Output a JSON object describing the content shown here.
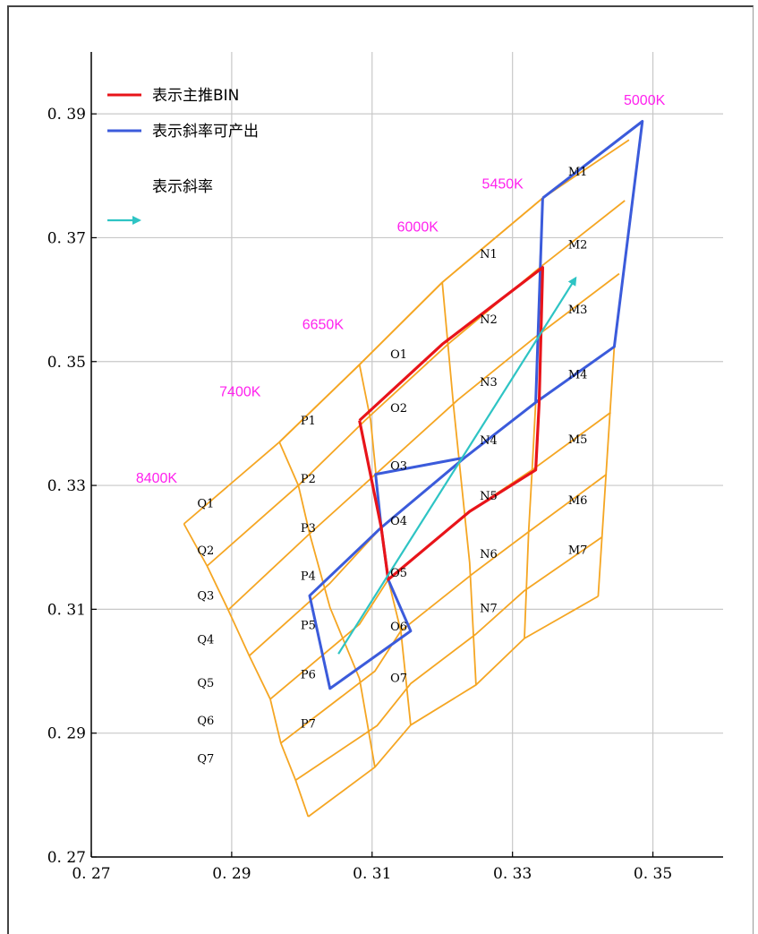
{
  "chart_data": {
    "type": "scatter",
    "title": "",
    "xlabel": "",
    "ylabel": "",
    "xlim": [
      0.27,
      0.36
    ],
    "ylim": [
      0.27,
      0.4
    ],
    "x_ticks": [
      "0. 27",
      "0. 29",
      "0. 31",
      "0. 33",
      "0. 35"
    ],
    "y_ticks": [
      "0. 27",
      "0. 29",
      "0. 31",
      "0. 33",
      "0. 35",
      "0. 37",
      "0. 39"
    ],
    "x_tick_values": [
      0.27,
      0.29,
      0.31,
      0.33,
      0.35
    ],
    "y_tick_values": [
      0.27,
      0.29,
      0.31,
      0.33,
      0.35,
      0.37,
      0.39
    ],
    "grid": true,
    "colors": {
      "bin_grid": "#f5a623",
      "main_bin": "#e8141a",
      "slope_region": "#3b5bdb",
      "slope_arrow": "#2ec4c4",
      "cct_label": "#ff22ee"
    },
    "legend": {
      "position": "top-left",
      "items": [
        {
          "label": "表示主推BIN",
          "color": "#e8141a",
          "kind": "line"
        },
        {
          "label": "表示斜率可产出",
          "color": "#3b5bdb",
          "kind": "line"
        },
        {
          "label": "表示斜率",
          "color": "#2ec4c4",
          "kind": "arrow"
        }
      ]
    },
    "cct_lines": [
      {
        "label": "5000K",
        "points": [
          [
            0.3485,
            0.3888
          ],
          [
            0.3445,
            0.3524
          ],
          [
            0.3422,
            0.3121
          ]
        ],
        "label_at": [
          0.3488,
          0.3923
        ]
      },
      {
        "label": "5450K",
        "points": [
          [
            0.3343,
            0.3764
          ],
          [
            0.3339,
            0.3652
          ],
          [
            0.3333,
            0.3434
          ],
          [
            0.3328,
            0.3325
          ],
          [
            0.3323,
            0.3225
          ],
          [
            0.3317,
            0.3053
          ]
        ],
        "label_at": [
          0.3286,
          0.3788
        ]
      },
      {
        "label": "6000K",
        "points": [
          [
            0.32,
            0.3628
          ],
          [
            0.3216,
            0.3428
          ],
          [
            0.3239,
            0.3175
          ],
          [
            0.3248,
            0.2978
          ]
        ],
        "label_at": [
          0.3165,
          0.3719
        ]
      },
      {
        "label": "6650K",
        "points": [
          [
            0.3082,
            0.3495
          ],
          [
            0.3098,
            0.3405
          ],
          [
            0.3113,
            0.3232
          ],
          [
            0.3123,
            0.3148
          ],
          [
            0.3141,
            0.3065
          ],
          [
            0.3155,
            0.2913
          ]
        ],
        "label_at": [
          0.303,
          0.3561
        ]
      },
      {
        "label": "7400K",
        "points": [
          [
            0.2968,
            0.337
          ],
          [
            0.2995,
            0.33
          ],
          [
            0.3011,
            0.3222
          ],
          [
            0.304,
            0.3103
          ],
          [
            0.3082,
            0.2988
          ],
          [
            0.3104,
            0.2845
          ]
        ],
        "label_at": [
          0.2912,
          0.3453
        ]
      },
      {
        "label": "8400K",
        "points": [
          [
            0.2832,
            0.3238
          ],
          [
            0.2865,
            0.317
          ],
          [
            0.2895,
            0.3099
          ],
          [
            0.2925,
            0.3025
          ],
          [
            0.2955,
            0.2955
          ],
          [
            0.297,
            0.2884
          ],
          [
            0.2991,
            0.2824
          ],
          [
            0.3009,
            0.2765
          ]
        ],
        "label_at": [
          0.2793,
          0.3313
        ]
      }
    ],
    "bin_rows": [
      {
        "name": "row-0",
        "points": [
          [
            0.2968,
            0.337
          ],
          [
            0.3082,
            0.3495
          ],
          [
            0.32,
            0.3628
          ],
          [
            0.3343,
            0.3764
          ],
          [
            0.3466,
            0.3858
          ]
        ]
      },
      {
        "name": "row-1",
        "points": [
          [
            0.2832,
            0.3238
          ],
          [
            0.2968,
            0.337
          ],
          [
            0.3082,
            0.3495
          ],
          [
            0.32,
            0.3628
          ],
          [
            0.3343,
            0.3764
          ]
        ]
      },
      {
        "name": "row-2",
        "points": [
          [
            0.2865,
            0.317
          ],
          [
            0.2995,
            0.33
          ],
          [
            0.309,
            0.3405
          ],
          [
            0.3208,
            0.3528
          ],
          [
            0.3339,
            0.3652
          ],
          [
            0.346,
            0.376
          ]
        ]
      },
      {
        "name": "row-3",
        "points": [
          [
            0.2895,
            0.3099
          ],
          [
            0.3011,
            0.3222
          ],
          [
            0.3105,
            0.3318
          ],
          [
            0.3222,
            0.3438
          ],
          [
            0.3333,
            0.354
          ],
          [
            0.3452,
            0.3642
          ]
        ]
      },
      {
        "name": "row-4",
        "points": [
          [
            0.2925,
            0.3025
          ],
          [
            0.304,
            0.3142
          ],
          [
            0.3113,
            0.3232
          ],
          [
            0.3232,
            0.3345
          ],
          [
            0.3333,
            0.3434
          ],
          [
            0.3445,
            0.3524
          ]
        ]
      },
      {
        "name": "row-5",
        "points": [
          [
            0.2955,
            0.2955
          ],
          [
            0.3082,
            0.3076
          ],
          [
            0.3123,
            0.3148
          ],
          [
            0.3239,
            0.3258
          ],
          [
            0.3328,
            0.3325
          ],
          [
            0.344,
            0.3418
          ]
        ]
      },
      {
        "name": "row-6",
        "points": [
          [
            0.297,
            0.2884
          ],
          [
            0.3104,
            0.3
          ],
          [
            0.3141,
            0.3065
          ],
          [
            0.3244,
            0.3158
          ],
          [
            0.3323,
            0.3225
          ],
          [
            0.3434,
            0.3318
          ]
        ]
      },
      {
        "name": "row-7",
        "points": [
          [
            0.2991,
            0.2824
          ],
          [
            0.3107,
            0.2912
          ],
          [
            0.3155,
            0.298
          ],
          [
            0.3248,
            0.306
          ],
          [
            0.3317,
            0.313
          ],
          [
            0.3428,
            0.3217
          ]
        ]
      },
      {
        "name": "row-8",
        "points": [
          [
            0.3009,
            0.2765
          ],
          [
            0.3104,
            0.2845
          ],
          [
            0.3155,
            0.2913
          ],
          [
            0.3248,
            0.2978
          ],
          [
            0.3317,
            0.3053
          ],
          [
            0.3422,
            0.3121
          ]
        ]
      }
    ],
    "bin_labels": [
      {
        "label": "M1",
        "at": [
          0.3393,
          0.3808
        ]
      },
      {
        "label": "M2",
        "at": [
          0.3393,
          0.369
        ]
      },
      {
        "label": "M3",
        "at": [
          0.3393,
          0.3585
        ]
      },
      {
        "label": "M4",
        "at": [
          0.3393,
          0.348
        ]
      },
      {
        "label": "M5",
        "at": [
          0.3393,
          0.3375
        ]
      },
      {
        "label": "M6",
        "at": [
          0.3393,
          0.3277
        ]
      },
      {
        "label": "M7",
        "at": [
          0.3393,
          0.3197
        ]
      },
      {
        "label": "N1",
        "at": [
          0.3266,
          0.3675
        ]
      },
      {
        "label": "N2",
        "at": [
          0.3266,
          0.3569
        ]
      },
      {
        "label": "N3",
        "at": [
          0.3266,
          0.3468
        ]
      },
      {
        "label": "N4",
        "at": [
          0.3266,
          0.3374
        ]
      },
      {
        "label": "N5",
        "at": [
          0.3266,
          0.3284
        ]
      },
      {
        "label": "N6",
        "at": [
          0.3266,
          0.319
        ]
      },
      {
        "label": "N7",
        "at": [
          0.3266,
          0.3103
        ]
      },
      {
        "label": "O1",
        "at": [
          0.3138,
          0.3513
        ]
      },
      {
        "label": "O2",
        "at": [
          0.3138,
          0.3426
        ]
      },
      {
        "label": "O3",
        "at": [
          0.3138,
          0.3333
        ]
      },
      {
        "label": "O4",
        "at": [
          0.3138,
          0.3244
        ]
      },
      {
        "label": "O5",
        "at": [
          0.3138,
          0.316
        ]
      },
      {
        "label": "O6",
        "at": [
          0.3138,
          0.3073
        ]
      },
      {
        "label": "O7",
        "at": [
          0.3138,
          0.299
        ]
      },
      {
        "label": "P1",
        "at": [
          0.3009,
          0.3406
        ]
      },
      {
        "label": "P2",
        "at": [
          0.3009,
          0.3312
        ]
      },
      {
        "label": "P3",
        "at": [
          0.3009,
          0.3232
        ]
      },
      {
        "label": "P4",
        "at": [
          0.3009,
          0.3155
        ]
      },
      {
        "label": "P5",
        "at": [
          0.3009,
          0.3075
        ]
      },
      {
        "label": "P6",
        "at": [
          0.3009,
          0.2996
        ]
      },
      {
        "label": "P7",
        "at": [
          0.3009,
          0.2916
        ]
      },
      {
        "label": "Q1",
        "at": [
          0.2863,
          0.3272
        ]
      },
      {
        "label": "Q2",
        "at": [
          0.2863,
          0.3196
        ]
      },
      {
        "label": "Q3",
        "at": [
          0.2863,
          0.3123
        ]
      },
      {
        "label": "Q4",
        "at": [
          0.2863,
          0.3052
        ]
      },
      {
        "label": "Q5",
        "at": [
          0.2863,
          0.2982
        ]
      },
      {
        "label": "Q6",
        "at": [
          0.2863,
          0.2921
        ]
      },
      {
        "label": "Q7",
        "at": [
          0.2863,
          0.286
        ]
      }
    ],
    "red_main_bin": [
      [
        0.3082,
        0.3405
      ],
      [
        0.32,
        0.3528
      ],
      [
        0.3343,
        0.3652
      ],
      [
        0.3338,
        0.3434
      ],
      [
        0.3333,
        0.3325
      ],
      [
        0.3239,
        0.3258
      ],
      [
        0.3123,
        0.3148
      ],
      [
        0.3113,
        0.3232
      ],
      [
        0.3082,
        0.3405
      ]
    ],
    "blue_slope_region": [
      [
        0.3343,
        0.3764
      ],
      [
        0.3485,
        0.3888
      ],
      [
        0.3445,
        0.3524
      ],
      [
        0.3333,
        0.3434
      ],
      [
        0.3232,
        0.3345
      ],
      [
        0.3113,
        0.3232
      ],
      [
        0.3011,
        0.3122
      ],
      [
        0.304,
        0.2972
      ],
      [
        0.3155,
        0.3065
      ],
      [
        0.3123,
        0.3148
      ],
      [
        0.3113,
        0.3232
      ],
      [
        0.3105,
        0.3318
      ],
      [
        0.3232,
        0.3345
      ],
      [
        0.3333,
        0.3434
      ],
      [
        0.3343,
        0.3764
      ]
    ],
    "slope_arrow": [
      [
        0.3052,
        0.3028
      ],
      [
        0.339,
        0.3635
      ]
    ]
  }
}
